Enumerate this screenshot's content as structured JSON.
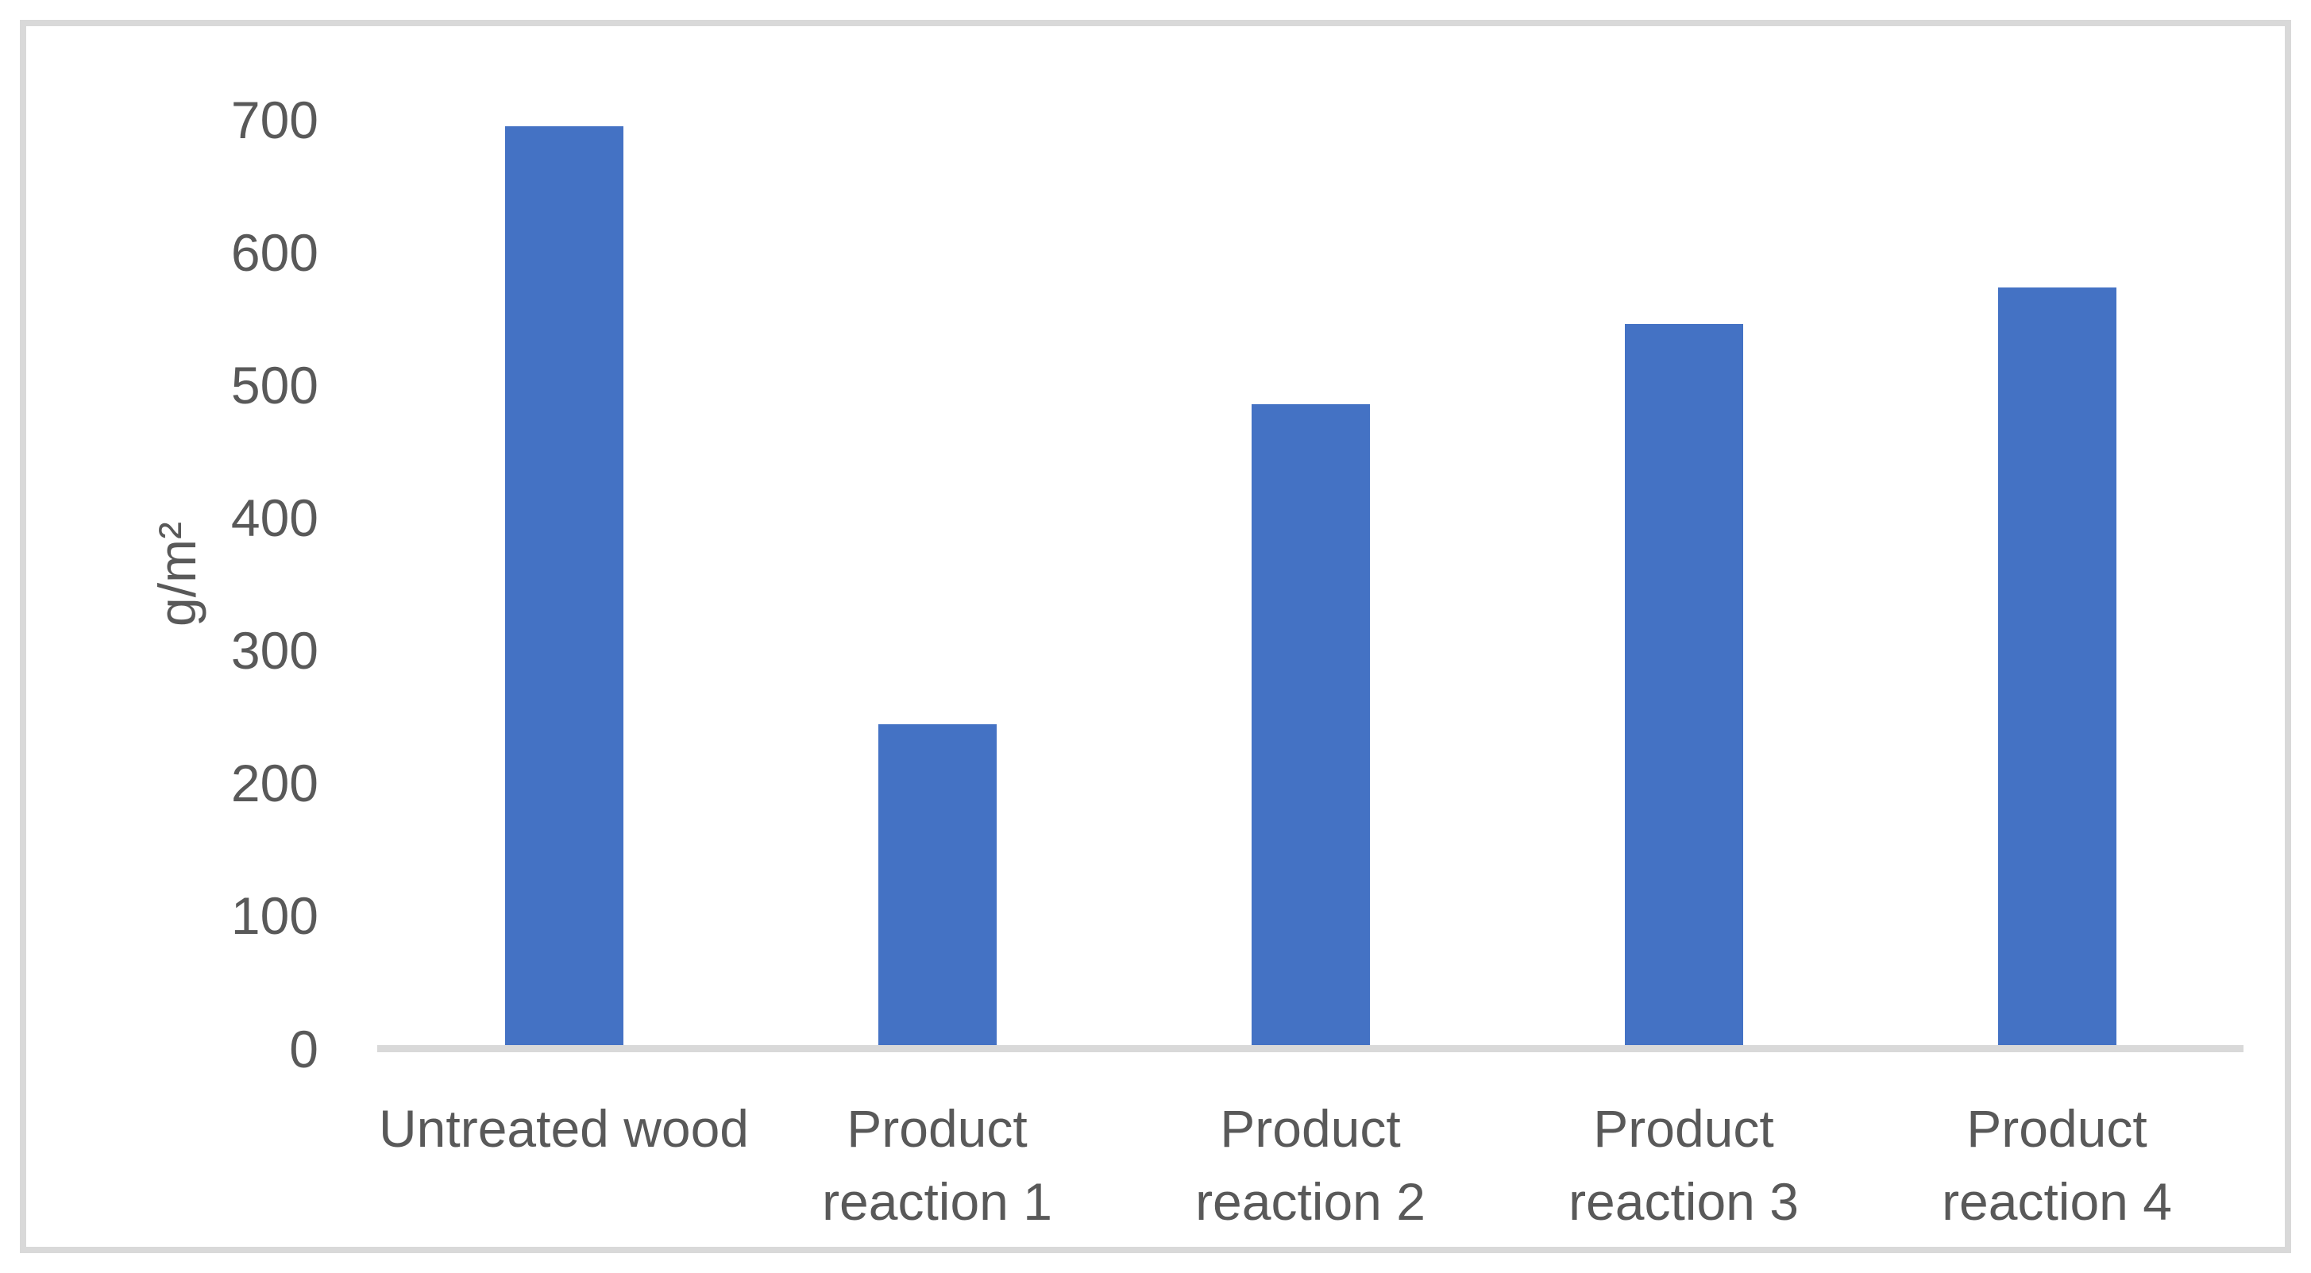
{
  "chart_data": {
    "type": "bar",
    "categories": [
      "Untreated wood",
      "Product reaction 1",
      "Product reaction 2",
      "Product reaction 3",
      "Product reaction 4"
    ],
    "values": [
      692,
      242,
      483,
      543,
      571
    ],
    "title": "",
    "xlabel": "",
    "ylabel": "g/m²",
    "ylim": [
      0,
      700
    ],
    "yticks": [
      0,
      100,
      200,
      300,
      400,
      500,
      600,
      700
    ],
    "grid": false,
    "legend": "none",
    "bar_color": "#4472C4",
    "axis_line_color": "#D9D9D9",
    "frame_border_color": "#D9D9D9",
    "label_color": "#595959"
  }
}
